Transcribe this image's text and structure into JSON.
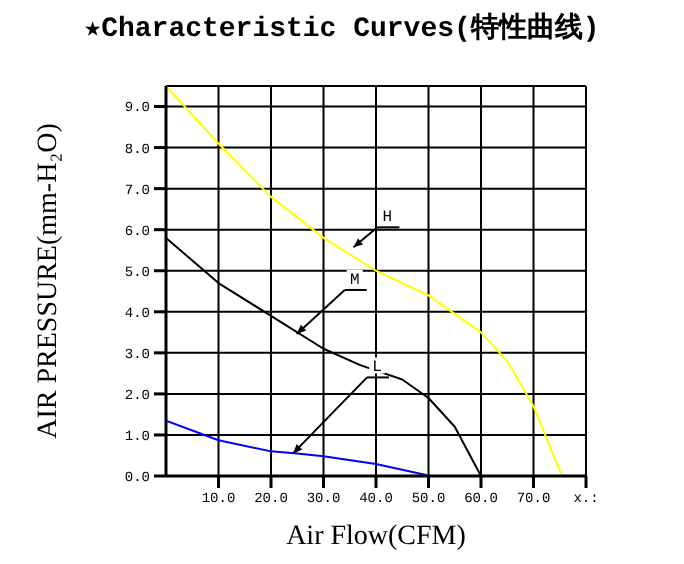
{
  "chart_data": {
    "type": "line",
    "title": "★Characteristic Curves(特性曲线)",
    "xlabel": "Air Flow(CFM)",
    "ylabel": "AIR PRESSURE(mm-H₂O)",
    "xlim": [
      0,
      80
    ],
    "ylim": [
      0,
      9.5
    ],
    "xticks": [
      {
        "value": 10,
        "label": "10.0"
      },
      {
        "value": 20,
        "label": "20.0"
      },
      {
        "value": 30,
        "label": "30.0"
      },
      {
        "value": 40,
        "label": "40.0"
      },
      {
        "value": 50,
        "label": "50.0"
      },
      {
        "value": 60,
        "label": "60.0"
      },
      {
        "value": 70,
        "label": "70.0"
      },
      {
        "value": 80,
        "label": "x.:"
      }
    ],
    "yticks": [
      {
        "value": 0,
        "label": "0.0"
      },
      {
        "value": 1,
        "label": "1.0"
      },
      {
        "value": 2,
        "label": "2.0"
      },
      {
        "value": 3,
        "label": "3.0"
      },
      {
        "value": 4,
        "label": "4.0"
      },
      {
        "value": 5,
        "label": "5.0"
      },
      {
        "value": 6,
        "label": "6.0"
      },
      {
        "value": 7,
        "label": "7.0"
      },
      {
        "value": 8,
        "label": "8.0"
      },
      {
        "value": 9,
        "label": "9.0"
      }
    ],
    "grid": true,
    "legend": false,
    "marker": "none",
    "line_style": "solid",
    "series": [
      {
        "color": "#ffff00",
        "x": [
          0,
          10,
          20,
          30,
          40,
          50,
          60,
          65,
          70,
          75.4
        ],
        "values": [
          9.5,
          8.1,
          6.8,
          5.8,
          5.0,
          4.4,
          3.5,
          2.8,
          1.7,
          0
        ]
      },
      {
        "color": "#000000",
        "x": [
          0,
          10,
          20,
          30,
          37,
          45,
          50,
          55,
          60
        ],
        "values": [
          5.8,
          4.7,
          3.9,
          3.1,
          2.7,
          2.35,
          1.9,
          1.2,
          0
        ]
      },
      {
        "color": "#0000ff",
        "x": [
          0,
          10,
          20,
          25,
          30,
          40,
          50.4
        ],
        "values": [
          1.35,
          0.87,
          0.6,
          0.55,
          0.48,
          0.29,
          0
        ]
      }
    ],
    "annotations": [
      {
        "text": "H",
        "x": 35.7,
        "y": 5.57
      },
      {
        "text": "M",
        "x": 24.9,
        "y": 3.46
      },
      {
        "text": "L",
        "x": 24.2,
        "y": 0.55
      }
    ]
  }
}
